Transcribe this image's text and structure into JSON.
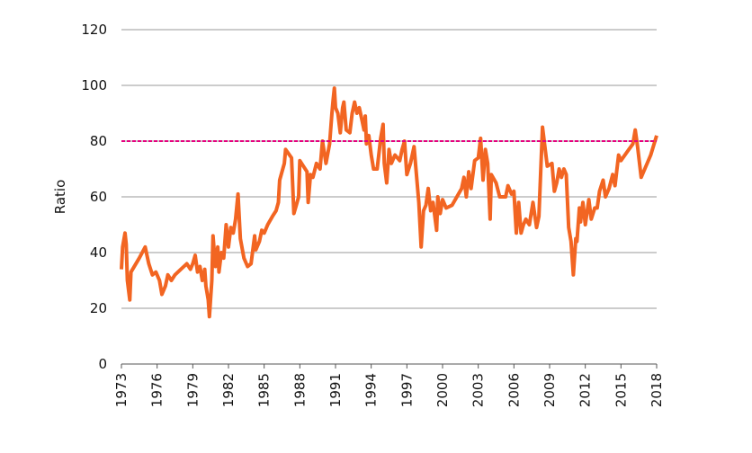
{
  "chart_data": {
    "type": "line",
    "y_label": "Ratio",
    "x": [
      1973.0,
      1973.1,
      1973.3,
      1973.4,
      1973.5,
      1973.7,
      1973.8,
      1974.5,
      1975.0,
      1975.3,
      1975.6,
      1975.9,
      1976.2,
      1976.4,
      1976.7,
      1976.9,
      1977.2,
      1977.5,
      1978.0,
      1978.5,
      1978.8,
      1979.0,
      1979.2,
      1979.4,
      1979.6,
      1979.8,
      1980.0,
      1980.1,
      1980.3,
      1980.4,
      1980.6,
      1980.7,
      1980.9,
      1981.1,
      1981.2,
      1981.4,
      1981.6,
      1981.8,
      1982.0,
      1982.2,
      1982.4,
      1982.6,
      1982.8,
      1983.0,
      1983.3,
      1983.6,
      1983.9,
      1984.2,
      1984.3,
      1984.6,
      1984.8,
      1985.0,
      1985.3,
      1985.7,
      1986.0,
      1986.2,
      1986.3,
      1986.5,
      1986.7,
      1986.8,
      1987.3,
      1987.5,
      1987.7,
      1987.9,
      1988.0,
      1988.3,
      1988.6,
      1988.7,
      1988.9,
      1989.1,
      1989.4,
      1989.7,
      1989.9,
      1990.2,
      1990.5,
      1990.7,
      1990.8,
      1990.9,
      1991.0,
      1991.2,
      1991.4,
      1991.6,
      1991.7,
      1991.9,
      1992.2,
      1992.4,
      1992.6,
      1992.8,
      1993.0,
      1993.2,
      1993.4,
      1993.5,
      1993.6,
      1993.8,
      1994.0,
      1994.2,
      1994.5,
      1994.8,
      1995.0,
      1995.1,
      1995.3,
      1995.5,
      1995.7,
      1996.0,
      1996.4,
      1996.6,
      1996.8,
      1997.0,
      1997.3,
      1997.6,
      1998.0,
      1998.2,
      1998.4,
      1998.6,
      1998.8,
      1999.0,
      1999.2,
      1999.5,
      1999.6,
      1999.8,
      2000.0,
      2000.3,
      2000.8,
      2001.2,
      2001.6,
      2001.8,
      2002.0,
      2002.2,
      2002.4,
      2002.7,
      2003.0,
      2003.2,
      2003.4,
      2003.6,
      2003.8,
      2004.0,
      2004.1,
      2004.5,
      2004.8,
      2005.3,
      2005.5,
      2005.8,
      2006.0,
      2006.2,
      2006.4,
      2006.6,
      2006.8,
      2007.0,
      2007.3,
      2007.6,
      2007.9,
      2008.1,
      2008.4,
      2008.8,
      2009.2,
      2009.4,
      2009.6,
      2009.8,
      2010.0,
      2010.2,
      2010.4,
      2010.6,
      2010.8,
      2011.0,
      2011.2,
      2011.3,
      2011.5,
      2011.6,
      2011.8,
      2012.0,
      2012.3,
      2012.5,
      2012.8,
      2013.0,
      2013.2,
      2013.5,
      2013.7,
      2014.0,
      2014.3,
      2014.5,
      2014.8,
      2015.0,
      2015.5,
      2016.0,
      2016.2,
      2016.4,
      2016.7,
      2017.0,
      2017.5,
      2018.0
    ],
    "values": [
      34,
      42,
      47,
      43,
      30,
      23,
      33,
      38,
      42,
      36,
      32,
      33,
      30,
      25,
      28,
      32,
      30,
      32,
      34,
      36,
      34,
      36,
      39,
      33,
      35,
      30,
      34,
      28,
      23,
      17,
      30,
      46,
      35,
      42,
      33,
      40,
      38,
      50,
      42,
      49,
      47,
      52,
      61,
      45,
      38,
      35,
      36,
      46,
      41,
      44,
      48,
      47,
      50,
      53,
      55,
      58,
      66,
      69,
      72,
      77,
      74,
      54,
      57,
      60,
      73,
      71,
      69,
      58,
      68,
      67,
      72,
      70,
      80,
      72,
      79,
      90,
      95,
      99,
      92,
      90,
      83,
      92,
      94,
      84,
      83,
      90,
      94,
      90,
      92,
      88,
      84,
      89,
      79,
      82,
      75,
      70,
      70,
      81,
      86,
      72,
      65,
      77,
      72,
      75,
      73,
      77,
      80,
      68,
      72,
      78,
      58,
      42,
      55,
      57,
      63,
      55,
      58,
      48,
      60,
      54,
      59,
      56,
      57,
      60,
      63,
      67,
      60,
      69,
      63,
      73,
      74,
      81,
      66,
      77,
      72,
      52,
      68,
      65,
      60,
      60,
      64,
      61,
      62,
      47,
      58,
      47,
      50,
      52,
      50,
      58,
      49,
      53,
      85,
      71,
      72,
      62,
      65,
      70,
      67,
      70,
      68,
      49,
      44,
      32,
      45,
      44,
      56,
      51,
      58,
      50,
      59,
      52,
      56,
      56,
      62,
      66,
      60,
      63,
      68,
      64,
      75,
      73,
      76,
      79,
      84,
      78,
      67,
      70,
      75,
      82
    ],
    "color": "#f26522",
    "reference_line": 80,
    "reference_color": "#e6007e",
    "xlim": [
      1973,
      2018
    ],
    "xticks": [
      1973,
      1976,
      1979,
      1982,
      1985,
      1988,
      1991,
      1994,
      1997,
      2000,
      2003,
      2006,
      2009,
      2012,
      2015,
      2018
    ],
    "ylim": [
      0,
      120
    ],
    "yticks": [
      0,
      20,
      40,
      60,
      80,
      100,
      120
    ],
    "grid": true
  }
}
